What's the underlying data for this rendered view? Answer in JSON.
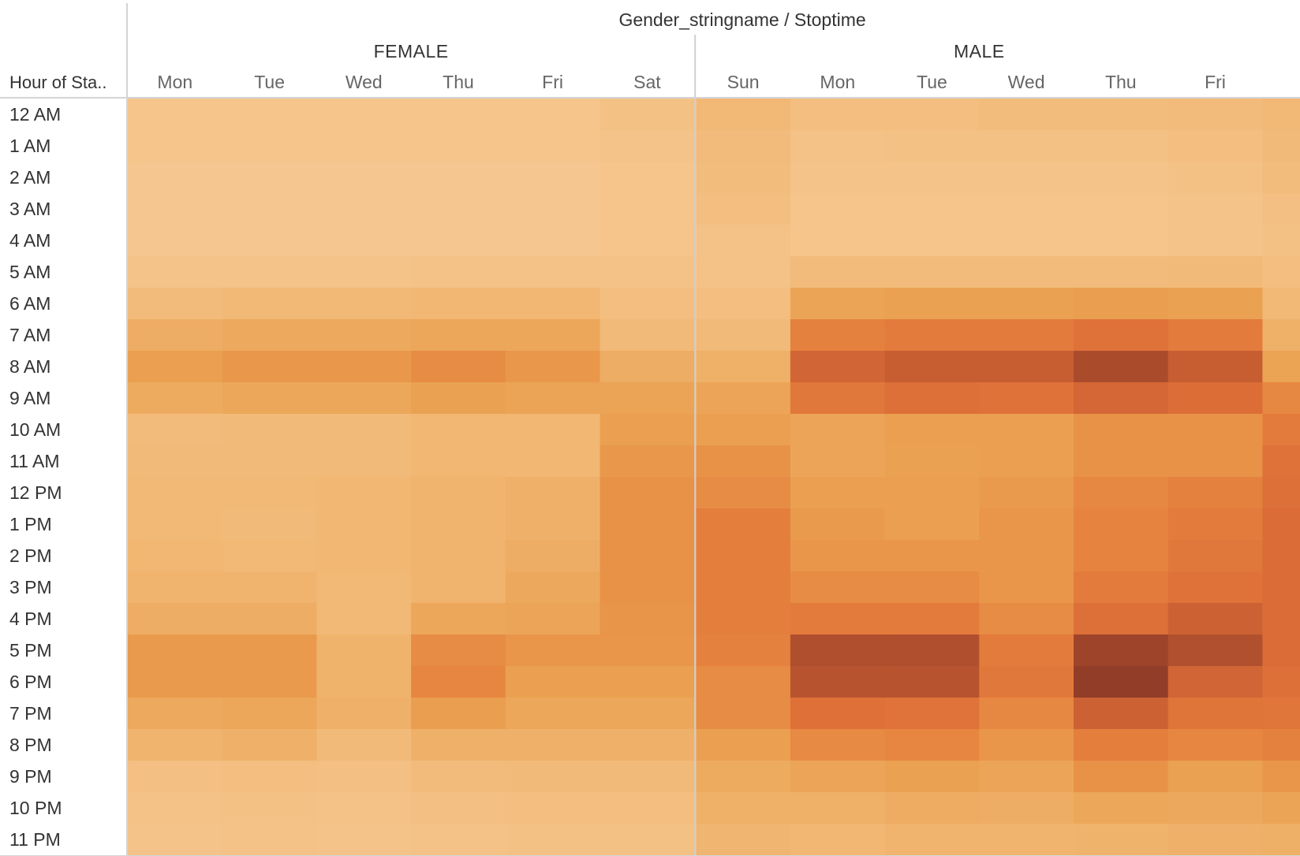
{
  "chart_data": {
    "type": "heatmap",
    "title": "Gender_stringname / Stoptime",
    "row_axis_label": "Hour of Sta..",
    "groups": [
      {
        "name": "FEMALE",
        "columns": [
          "Mon",
          "Tue",
          "Wed",
          "Thu",
          "Fri",
          "Sat"
        ]
      },
      {
        "name": "MALE",
        "columns": [
          "Sun",
          "Mon",
          "Tue",
          "Wed",
          "Thu",
          "Fri",
          ""
        ]
      }
    ],
    "rows": [
      "12 AM",
      "1 AM",
      "2 AM",
      "3 AM",
      "4 AM",
      "5 AM",
      "6 AM",
      "7 AM",
      "8 AM",
      "9 AM",
      "10 AM",
      "11 AM",
      "12 PM",
      "1 PM",
      "2 PM",
      "3 PM",
      "4 PM",
      "5 PM",
      "6 PM",
      "7 PM",
      "8 PM",
      "9 PM",
      "10 PM",
      "11 PM"
    ],
    "value_scale": "relative trip count (0-100)",
    "color_range": [
      "#f6c994",
      "#8f3b28"
    ],
    "values": [
      [
        3,
        3,
        3,
        3,
        3,
        6,
        12,
        8,
        8,
        9,
        9,
        10,
        12
      ],
      [
        3,
        3,
        3,
        3,
        3,
        4,
        10,
        5,
        6,
        6,
        6,
        8,
        11
      ],
      [
        2,
        2,
        2,
        2,
        2,
        3,
        9,
        4,
        4,
        4,
        4,
        6,
        9
      ],
      [
        2,
        2,
        2,
        2,
        2,
        3,
        8,
        3,
        3,
        3,
        3,
        4,
        7
      ],
      [
        2,
        2,
        2,
        2,
        2,
        3,
        5,
        3,
        3,
        3,
        3,
        4,
        6
      ],
      [
        4,
        4,
        4,
        5,
        5,
        5,
        5,
        10,
        10,
        10,
        10,
        11,
        8
      ],
      [
        10,
        12,
        12,
        13,
        13,
        8,
        8,
        27,
        29,
        29,
        31,
        29,
        12
      ],
      [
        20,
        23,
        23,
        25,
        25,
        11,
        11,
        46,
        50,
        50,
        56,
        50,
        18
      ],
      [
        30,
        34,
        34,
        40,
        34,
        20,
        18,
        64,
        68,
        68,
        82,
        68,
        28
      ],
      [
        22,
        25,
        25,
        29,
        27,
        27,
        26,
        52,
        58,
        56,
        63,
        59,
        42
      ],
      [
        10,
        11,
        11,
        13,
        13,
        30,
        30,
        26,
        30,
        30,
        37,
        37,
        50
      ],
      [
        11,
        11,
        11,
        13,
        13,
        34,
        37,
        26,
        29,
        30,
        37,
        37,
        56
      ],
      [
        12,
        12,
        13,
        15,
        17,
        37,
        40,
        30,
        30,
        33,
        42,
        46,
        58
      ],
      [
        12,
        11,
        13,
        15,
        17,
        37,
        48,
        33,
        30,
        35,
        44,
        50,
        60
      ],
      [
        13,
        12,
        13,
        15,
        20,
        37,
        48,
        35,
        35,
        35,
        44,
        52,
        60
      ],
      [
        15,
        15,
        12,
        15,
        24,
        37,
        48,
        40,
        40,
        35,
        50,
        56,
        60
      ],
      [
        20,
        20,
        12,
        25,
        26,
        36,
        48,
        50,
        50,
        40,
        58,
        66,
        60
      ],
      [
        33,
        33,
        16,
        40,
        35,
        35,
        46,
        78,
        78,
        50,
        90,
        77,
        60
      ],
      [
        33,
        33,
        16,
        43,
        30,
        30,
        40,
        74,
        74,
        52,
        98,
        64,
        58
      ],
      [
        23,
        25,
        17,
        31,
        25,
        25,
        40,
        57,
        55,
        42,
        66,
        54,
        53
      ],
      [
        15,
        17,
        11,
        17,
        17,
        17,
        30,
        41,
        43,
        35,
        48,
        43,
        46
      ],
      [
        7,
        8,
        7,
        10,
        11,
        11,
        22,
        26,
        29,
        26,
        37,
        29,
        35
      ],
      [
        5,
        6,
        5,
        7,
        8,
        8,
        18,
        18,
        21,
        20,
        25,
        24,
        27
      ],
      [
        4,
        5,
        4,
        5,
        6,
        6,
        14,
        13,
        15,
        15,
        16,
        17,
        19
      ]
    ]
  }
}
